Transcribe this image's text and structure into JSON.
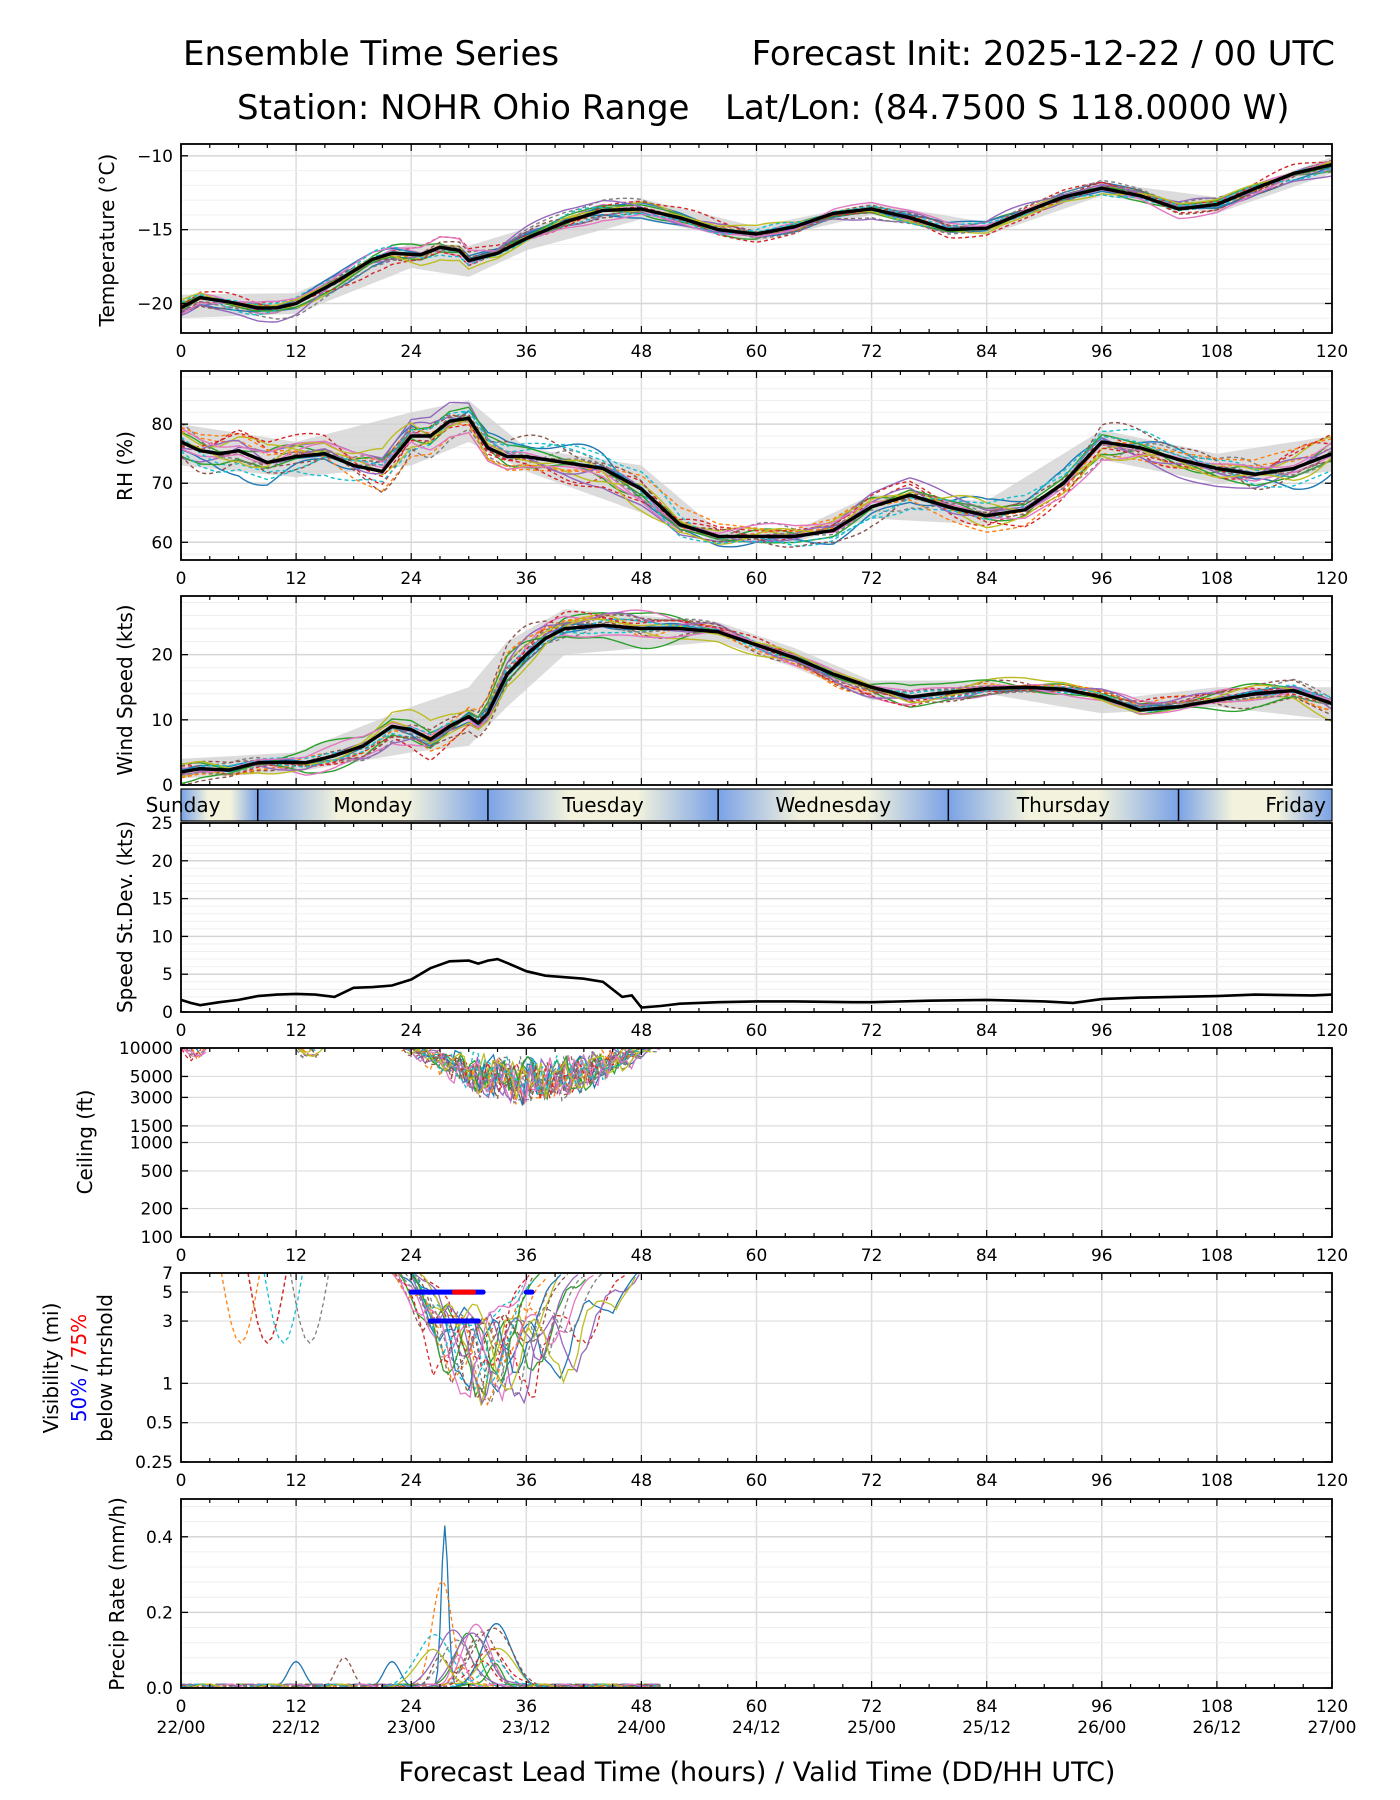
{
  "header": {
    "title_left": "Ensemble Time Series",
    "title_right": "Forecast Init: 2025-12-22 / 00 UTC",
    "station": "Station: NOHR Ohio Range",
    "latlon": "Lat/Lon: (84.7500 S 118.0000 W)"
  },
  "x_axis": {
    "label": "Forecast Lead Time (hours) / Valid Time (DD/HH UTC)",
    "ticks": [
      0,
      12,
      24,
      36,
      48,
      60,
      72,
      84,
      96,
      108,
      120
    ],
    "tick_labels": [
      "0",
      "12",
      "24",
      "36",
      "48",
      "60",
      "72",
      "84",
      "96",
      "108",
      "120"
    ],
    "valid_time_labels": [
      "22/00",
      "22/12",
      "23/00",
      "23/12",
      "24/00",
      "24/12",
      "25/00",
      "25/12",
      "26/00",
      "26/12",
      "27/00"
    ],
    "range": [
      0,
      120
    ]
  },
  "day_bar": {
    "days": [
      {
        "name": "Sunday",
        "start": 0,
        "end": 8
      },
      {
        "name": "Monday",
        "start": 8,
        "end": 32
      },
      {
        "name": "Tuesday",
        "start": 32,
        "end": 56
      },
      {
        "name": "Wednesday",
        "start": 56,
        "end": 80
      },
      {
        "name": "Thursday",
        "start": 80,
        "end": 104
      },
      {
        "name": "Friday",
        "start": 104,
        "end": 120
      }
    ],
    "colors": {
      "night": "#7aa2e6",
      "day": "#f2f2dd"
    }
  },
  "colors": {
    "mean_line": "#000000",
    "spread_band": "#d0d0d0",
    "visibility_50": "#0000ff",
    "visibility_75": "#ff0000",
    "members": [
      "#1f77b4",
      "#ff7f0e",
      "#2ca02c",
      "#d62728",
      "#9467bd",
      "#8c564b",
      "#e377c2",
      "#7f7f7f",
      "#bcbd22",
      "#17becf"
    ]
  },
  "chart_data": [
    {
      "id": "temperature",
      "type": "line",
      "title": "",
      "ylabel": "Temperature (°C)",
      "xlabel": "",
      "ylim": [
        -22,
        -9.2
      ],
      "yticks": [
        -20,
        -15,
        -10
      ],
      "ensemble_mean": {
        "x": [
          0,
          2,
          5,
          8,
          10,
          12,
          16,
          20,
          22,
          25,
          27,
          29,
          30,
          33,
          36,
          40,
          44,
          48,
          52,
          56,
          60,
          64,
          68,
          72,
          76,
          80,
          84,
          88,
          92,
          96,
          100,
          104,
          108,
          112,
          116,
          120
        ],
        "y": [
          -20.3,
          -19.6,
          -19.9,
          -20.3,
          -20.3,
          -20.0,
          -18.6,
          -17.0,
          -16.6,
          -16.7,
          -16.2,
          -16.4,
          -17.1,
          -16.6,
          -15.6,
          -14.5,
          -13.7,
          -13.6,
          -14.2,
          -15.0,
          -15.3,
          -14.8,
          -13.9,
          -13.6,
          -14.2,
          -15.0,
          -14.9,
          -13.8,
          -12.8,
          -12.2,
          -12.7,
          -13.6,
          -13.3,
          -12.2,
          -11.2,
          -10.6
        ]
      },
      "spread_band": {
        "x": [
          0,
          12,
          24,
          30,
          36,
          48,
          60,
          72,
          84,
          96,
          108,
          120
        ],
        "lower": [
          -21.0,
          -20.7,
          -17.6,
          -18.2,
          -16.4,
          -14.3,
          -15.8,
          -14.0,
          -15.4,
          -12.7,
          -13.9,
          -11.2
        ],
        "upper": [
          -19.4,
          -19.3,
          -15.9,
          -16.1,
          -14.9,
          -12.9,
          -14.8,
          -13.2,
          -14.5,
          -11.8,
          -12.8,
          -10.1
        ]
      },
      "members": 20
    },
    {
      "id": "rh",
      "type": "line",
      "ylabel": "RH (%)",
      "ylim": [
        57,
        89
      ],
      "yticks": [
        60,
        70,
        80
      ],
      "ensemble_mean": {
        "x": [
          0,
          2,
          4,
          6,
          9,
          12,
          15,
          18,
          21,
          24,
          26,
          28,
          30,
          32,
          34,
          36,
          40,
          44,
          48,
          52,
          56,
          60,
          64,
          68,
          72,
          76,
          80,
          84,
          88,
          92,
          96,
          100,
          104,
          108,
          112,
          116,
          120
        ],
        "y": [
          77,
          75.5,
          75,
          75.5,
          73.5,
          74.5,
          75,
          73,
          72,
          78,
          78,
          80.5,
          81,
          76,
          74.5,
          74.5,
          73.5,
          72.5,
          69,
          63,
          61,
          61,
          61,
          62,
          66,
          68,
          66,
          64.5,
          65.5,
          70,
          77,
          76,
          74,
          72.5,
          71.5,
          72.5,
          75
        ]
      },
      "spread_band": {
        "x": [
          0,
          12,
          24,
          30,
          36,
          48,
          56,
          64,
          72,
          84,
          96,
          108,
          120
        ],
        "lower": [
          73,
          71,
          73,
          77,
          72,
          65,
          60,
          60,
          64,
          63,
          74,
          70,
          72
        ],
        "upper": [
          80,
          77,
          82,
          84,
          76,
          73,
          62,
          62,
          68,
          67,
          79,
          75,
          78
        ]
      },
      "members": 20
    },
    {
      "id": "wind_speed",
      "type": "line",
      "ylabel": "Wind Speed (kts)",
      "ylim": [
        0,
        29
      ],
      "yticks": [
        0,
        10,
        20
      ],
      "ensemble_mean": {
        "x": [
          0,
          2,
          5,
          8,
          11,
          13,
          16,
          19,
          22,
          24,
          26,
          28,
          30,
          31,
          32,
          34,
          36,
          38,
          40,
          44,
          48,
          52,
          56,
          60,
          64,
          68,
          72,
          76,
          80,
          84,
          88,
          92,
          96,
          100,
          104,
          108,
          112,
          116,
          120
        ],
        "y": [
          2,
          2.5,
          2.3,
          3.4,
          3.5,
          3.4,
          4.5,
          6,
          9,
          8.5,
          7,
          9,
          10.5,
          9.5,
          11,
          17,
          20,
          22.5,
          24,
          24.5,
          24,
          24,
          23.5,
          21.5,
          19.5,
          17,
          15,
          13.5,
          14.2,
          14.8,
          15,
          14.7,
          13.5,
          11.5,
          12,
          13,
          14,
          14.5,
          12.5
        ]
      },
      "spread_band": {
        "x": [
          0,
          12,
          24,
          30,
          34,
          40,
          48,
          56,
          64,
          72,
          84,
          96,
          108,
          120
        ],
        "lower": [
          1,
          2,
          5,
          6,
          12,
          20,
          21,
          22,
          18,
          13,
          14,
          11,
          12,
          10
        ],
        "upper": [
          4,
          5,
          12,
          15,
          22,
          27,
          26,
          25,
          21,
          16,
          16,
          13,
          15,
          15
        ]
      },
      "members": 20
    },
    {
      "id": "speed_stdev",
      "type": "line",
      "ylabel": "Speed St.Dev. (kts)",
      "ylim": [
        0,
        25
      ],
      "yticks": [
        0,
        5,
        10,
        15,
        20,
        25
      ],
      "series": [
        {
          "name": "Speed St.Dev.",
          "x": [
            0,
            1,
            2,
            4,
            6,
            8,
            10,
            12,
            14,
            16,
            18,
            20,
            22,
            24,
            26,
            28,
            30,
            31,
            32,
            33,
            34,
            36,
            38,
            40,
            42,
            44,
            46,
            47,
            48,
            50,
            52,
            56,
            60,
            64,
            70,
            72,
            78,
            84,
            90,
            93,
            96,
            100,
            108,
            112,
            118,
            120
          ],
          "y": [
            1.6,
            1.2,
            0.9,
            1.3,
            1.6,
            2.1,
            2.3,
            2.4,
            2.3,
            2.0,
            3.2,
            3.3,
            3.5,
            4.3,
            5.8,
            6.7,
            6.8,
            6.4,
            6.8,
            7.0,
            6.5,
            5.4,
            4.8,
            4.6,
            4.4,
            4.0,
            2.0,
            2.2,
            0.6,
            0.8,
            1.1,
            1.3,
            1.4,
            1.4,
            1.3,
            1.3,
            1.5,
            1.6,
            1.4,
            1.2,
            1.7,
            1.9,
            2.1,
            2.3,
            2.2,
            2.3
          ]
        }
      ]
    },
    {
      "id": "ceiling",
      "type": "line",
      "ylabel": "Ceiling (ft)",
      "yscale": "log",
      "ylim": [
        100,
        10000
      ],
      "yticks": [
        100,
        200,
        500,
        1000,
        1500,
        3000,
        5000,
        10000
      ],
      "ytick_labels": [
        "100",
        "200",
        "500",
        "1000",
        "1500",
        "3000",
        "5000",
        "10000"
      ],
      "member_minimum_ft": 2600,
      "active_hours": [
        [
          0,
          3
        ],
        [
          12,
          15
        ],
        [
          23,
          50
        ]
      ]
    },
    {
      "id": "visibility",
      "type": "line",
      "ylabel": "Visibility (mi)",
      "ylabel_50": "50%",
      "ylabel_sep": " / ",
      "ylabel_75": "75%",
      "ylabel_below": "below thrshold",
      "yscale": "log",
      "ylim": [
        0.25,
        7
      ],
      "yticks": [
        0.25,
        0.5,
        1,
        3,
        5,
        7
      ],
      "ytick_labels": [
        "0.25",
        "0.5",
        "1",
        "3",
        "5",
        "7"
      ],
      "member_minimum_mi": 0.65,
      "threshold_markers": [
        {
          "level": 5,
          "color": "blue",
          "segments": [
            [
              24,
              31.5
            ],
            [
              36,
              36.6
            ]
          ]
        },
        {
          "level": 5,
          "color": "red",
          "segments": [
            [
              28.5,
              30.5
            ]
          ]
        },
        {
          "level": 3,
          "color": "blue",
          "segments": [
            [
              26,
              31
            ]
          ]
        }
      ]
    },
    {
      "id": "precip_rate",
      "type": "line",
      "ylabel": "Precip Rate (mm/h)",
      "ylim": [
        0,
        0.5
      ],
      "yticks": [
        0.0,
        0.2,
        0.4
      ],
      "ytick_labels": [
        "0.0",
        "0.2",
        "0.4"
      ],
      "max_member": {
        "x": 27.5,
        "y": 0.43
      },
      "second_max": {
        "x": 27.2,
        "y": 0.28
      }
    }
  ]
}
